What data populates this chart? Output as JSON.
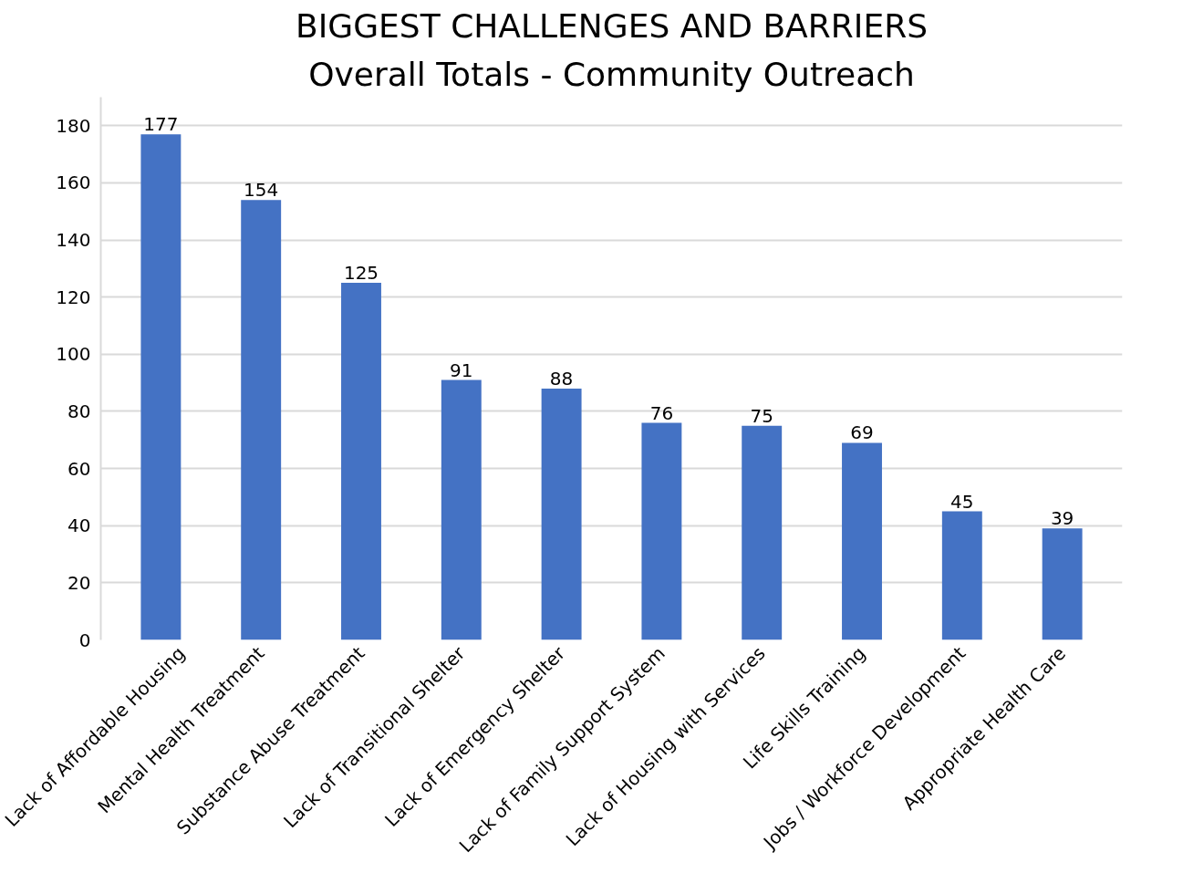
{
  "chart_data": {
    "type": "bar",
    "title": "BIGGEST CHALLENGES AND BARRIERS",
    "subtitle": "Overall Totals - Community Outreach",
    "categories": [
      "Lack of Affordable Housing",
      "Mental Health Treatment",
      "Substance Abuse Treatment",
      "Lack of Transitional Shelter",
      "Lack of Emergency Shelter",
      "Lack of Family Support System",
      "Lack of Housing with Services",
      "Life Skills Training",
      "Jobs / Workforce Development",
      "Appropriate Health Care"
    ],
    "values": [
      177,
      154,
      125,
      91,
      88,
      76,
      75,
      69,
      45,
      39
    ],
    "color": "#4472c4",
    "ylim": [
      0,
      190
    ],
    "yticks": [
      0,
      20,
      40,
      60,
      80,
      100,
      120,
      140,
      160,
      180
    ],
    "grid": "y",
    "data_labels": true
  }
}
